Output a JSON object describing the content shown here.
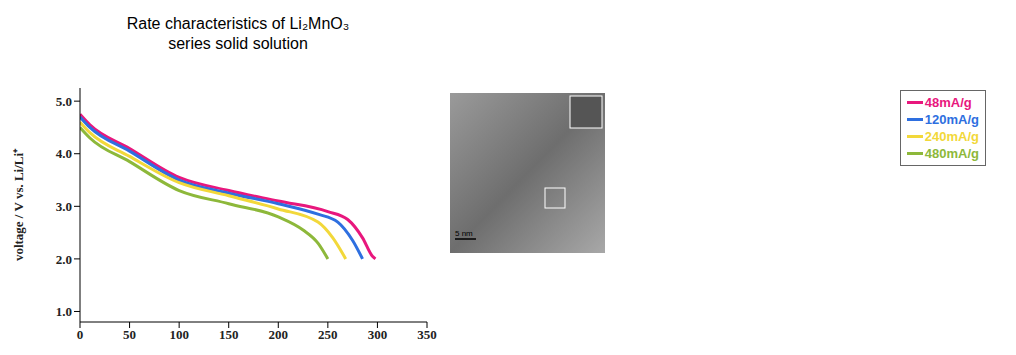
{
  "chart_data": {
    "type": "line",
    "title": "Rate characteristics of Li₂MnO₃ series solid solution",
    "y_label": "voltage / V vs. Li/Li⁺",
    "xlim": [
      0,
      350
    ],
    "xticks": [
      0,
      50,
      100,
      150,
      200,
      250,
      300,
      350
    ],
    "ylim": [
      0.8,
      5.25
    ],
    "yticks": [
      {
        "value": 1,
        "label": "1.0"
      },
      {
        "value": 2,
        "label": "2.0"
      },
      {
        "value": 3,
        "label": "3.0"
      },
      {
        "value": 4,
        "label": "4.0"
      },
      {
        "value": 5,
        "label": "5.0"
      }
    ],
    "grid": false,
    "legend": "upper right",
    "series": [
      {
        "name": "48mA/g",
        "color": "#e8177d",
        "x": [
          0,
          10,
          50,
          100,
          150,
          200,
          250,
          270,
          285,
          295,
          298
        ],
        "values": [
          4.75,
          4.55,
          4.1,
          3.55,
          3.3,
          3.1,
          2.9,
          2.75,
          2.4,
          2.05,
          2.0
        ]
      },
      {
        "name": "120mA/g",
        "color": "#2e6fe0",
        "x": [
          0,
          10,
          50,
          100,
          150,
          200,
          240,
          260,
          275,
          285
        ],
        "values": [
          4.7,
          4.5,
          4.05,
          3.5,
          3.25,
          3.05,
          2.85,
          2.7,
          2.35,
          2.0
        ]
      },
      {
        "name": "240mA/g",
        "color": "#f2d83a",
        "x": [
          0,
          10,
          50,
          100,
          150,
          200,
          240,
          255,
          268
        ],
        "values": [
          4.6,
          4.4,
          3.95,
          3.45,
          3.2,
          2.95,
          2.7,
          2.4,
          2.0
        ]
      },
      {
        "name": "480mA/g",
        "color": "#8db83a",
        "x": [
          0,
          10,
          50,
          100,
          150,
          200,
          225,
          240,
          250
        ],
        "values": [
          4.5,
          4.3,
          3.85,
          3.3,
          3.05,
          2.8,
          2.55,
          2.3,
          2.0
        ]
      }
    ]
  },
  "image": {
    "scale_bar_label": "5 nm"
  }
}
